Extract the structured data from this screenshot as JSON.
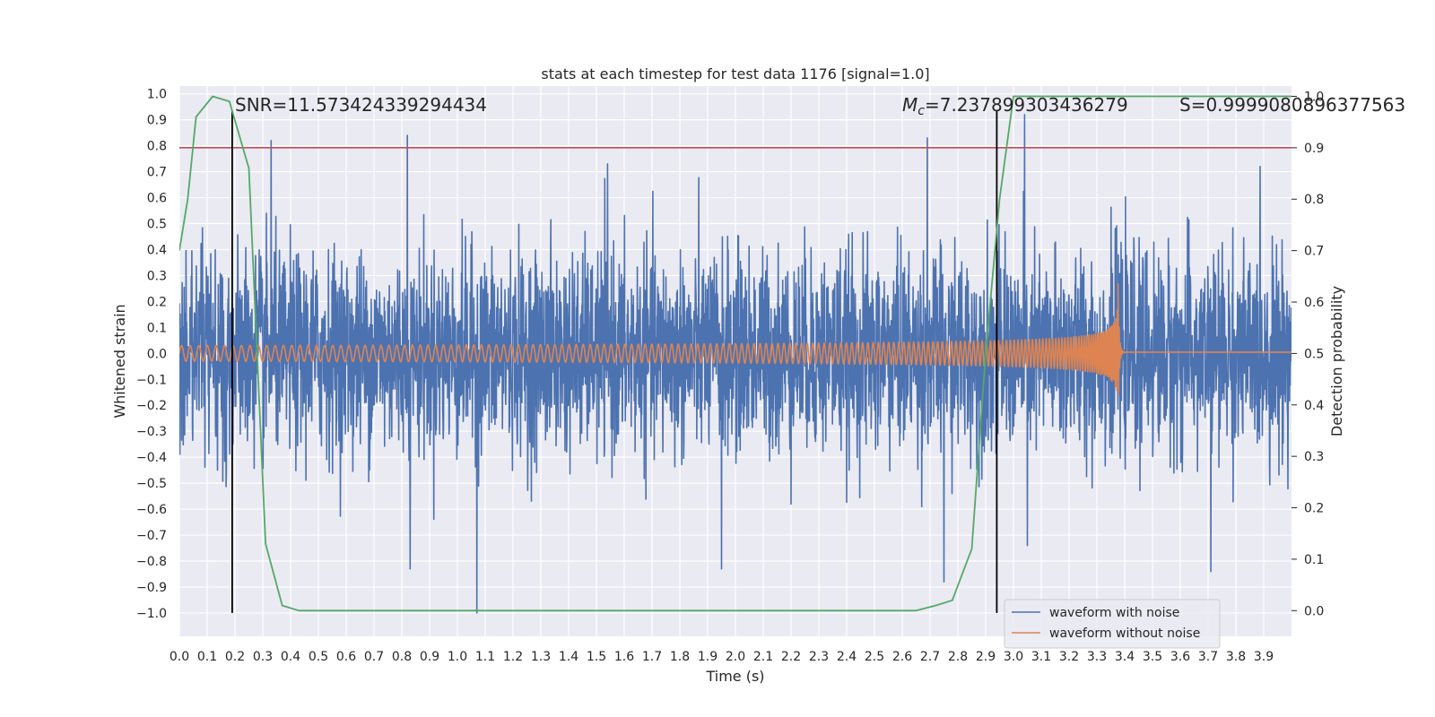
{
  "chart_data": {
    "type": "line",
    "title": "stats at each timestep for test data 1176 [signal=1.0]",
    "xlabel": "Time (s)",
    "ylabel": "Whitened strain",
    "y2label": "Detection probability",
    "xlim": [
      0.0,
      4.0
    ],
    "ylim": [
      -1.09,
      1.03
    ],
    "y2lim": [
      -0.05,
      1.02
    ],
    "xticks": [
      0.0,
      0.1,
      0.2,
      0.3,
      0.4,
      0.5,
      0.6,
      0.7,
      0.8,
      0.9,
      1.0,
      1.1,
      1.2,
      1.3,
      1.4,
      1.5,
      1.6,
      1.7,
      1.8,
      1.9,
      2.0,
      2.1,
      2.2,
      2.3,
      2.4,
      2.5,
      2.6,
      2.7,
      2.8,
      2.9,
      3.0,
      3.1,
      3.2,
      3.3,
      3.4,
      3.5,
      3.6,
      3.7,
      3.8,
      3.9
    ],
    "xtick_labels": [
      "0.0",
      "0.1",
      "0.2",
      "0.3",
      "0.4",
      "0.5",
      "0.6",
      "0.7",
      "0.8",
      "0.9",
      "1.0",
      "1.1",
      "1.2",
      "1.3",
      "1.4",
      "1.5",
      "1.6",
      "1.7",
      "1.8",
      "1.9",
      "2.0",
      "2.1",
      "2.2",
      "2.3",
      "2.4",
      "2.5",
      "2.6",
      "2.7",
      "2.8",
      "2.9",
      "3.0",
      "3.1",
      "3.2",
      "3.3",
      "3.4",
      "3.5",
      "3.6",
      "3.7",
      "3.8",
      "3.9"
    ],
    "yticks": [
      1.0,
      0.9,
      0.8,
      0.7,
      0.6,
      0.5,
      0.4,
      0.3,
      0.2,
      0.1,
      0.0,
      -0.1,
      -0.2,
      -0.3,
      -0.4,
      -0.5,
      -0.6,
      -0.7,
      -0.8,
      -0.9,
      -1.0
    ],
    "ytick_labels": [
      "1.0",
      "0.9",
      "0.8",
      "0.7",
      "0.6",
      "0.5",
      "0.4",
      "0.3",
      "0.2",
      "0.1",
      "0.0",
      "−0.1",
      "−0.2",
      "−0.3",
      "−0.4",
      "−0.5",
      "−0.6",
      "−0.7",
      "−0.8",
      "−0.9",
      "−1.0"
    ],
    "y2ticks": [
      1.0,
      0.9,
      0.8,
      0.7,
      0.6,
      0.5,
      0.4,
      0.3,
      0.2,
      0.1,
      0.0
    ],
    "y2tick_labels": [
      "1.0",
      "0.9",
      "0.8",
      "0.7",
      "0.6",
      "0.5",
      "0.4",
      "0.3",
      "0.2",
      "0.1",
      "0.0"
    ],
    "grid": true,
    "legend_placement": "lower-right",
    "annotations": {
      "snr": "SNR=11.573424339294434",
      "mc_symbol": "M",
      "mc_sub": "c",
      "mc_value": "=7.237899303436279",
      "s": "S=0.9999080896377563"
    },
    "vlines": [
      0.19,
      2.94
    ],
    "threshold_probability": 0.9,
    "series": [
      {
        "name": "waveform with noise",
        "color": "#4c72b0",
        "kind": "noise",
        "x_range": [
          0.0,
          4.0
        ],
        "typical_amplitude": 0.45,
        "peaks": [
          {
            "x": 0.33,
            "y": 0.82
          },
          {
            "x": 0.82,
            "y": 0.84
          },
          {
            "x": 0.83,
            "y": -0.83
          },
          {
            "x": 1.07,
            "y": -1.0
          },
          {
            "x": 1.54,
            "y": 0.73
          },
          {
            "x": 1.95,
            "y": -0.83
          },
          {
            "x": 2.69,
            "y": 0.83
          },
          {
            "x": 2.75,
            "y": -0.88
          },
          {
            "x": 3.04,
            "y": 0.92
          },
          {
            "x": 3.05,
            "y": -0.74
          },
          {
            "x": 3.71,
            "y": -0.84
          }
        ]
      },
      {
        "name": "waveform without noise",
        "color": "#dd8452",
        "kind": "chirp",
        "x_range": [
          0.0,
          4.0
        ],
        "merger_time": 3.375,
        "start_amplitude": 0.03,
        "peak_amplitude": 0.39,
        "ringdown_amplitude": 0.005
      },
      {
        "name": "",
        "color": "#55a868",
        "kind": "probability",
        "axis": "right",
        "x": [
          0.0,
          0.03,
          0.06,
          0.12,
          0.18,
          0.25,
          0.31,
          0.37,
          0.43,
          0.5,
          1.0,
          1.5,
          2.0,
          2.1,
          2.5,
          2.65,
          2.72,
          2.78,
          2.85,
          2.9,
          2.95,
          3.0,
          3.05,
          3.5,
          4.0
        ],
        "y": [
          0.7,
          0.8,
          0.96,
          1.0,
          0.99,
          0.86,
          0.13,
          0.01,
          0.0,
          0.0,
          0.0,
          0.0,
          0.0,
          0.0,
          0.0,
          0.0,
          0.01,
          0.02,
          0.12,
          0.5,
          0.8,
          1.0,
          1.0,
          1.0,
          1.0
        ]
      }
    ]
  }
}
